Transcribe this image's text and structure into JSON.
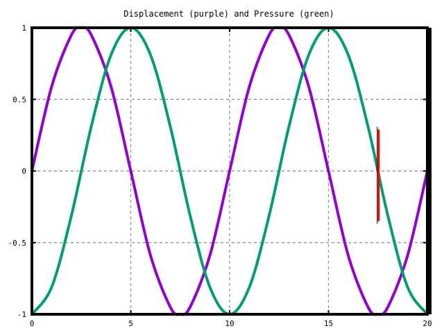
{
  "chart_data": {
    "type": "line",
    "title": "Displacement (purple) and Pressure (green)",
    "xlabel": "",
    "ylabel": "",
    "xlim": [
      0,
      20
    ],
    "ylim": [
      -1,
      1
    ],
    "x_ticks": [
      "0",
      "5",
      "10",
      "15",
      "20"
    ],
    "y_ticks": [
      "1",
      "0.5",
      "0",
      "-0.5",
      "-1"
    ],
    "grid": true,
    "series": [
      {
        "color": "#9400d3",
        "x": [
          0,
          1,
          2,
          2.5,
          3,
          4,
          5,
          6,
          7,
          7.5,
          8,
          9,
          10,
          11,
          12,
          12.5,
          13,
          14,
          15,
          16,
          17,
          17.5,
          18,
          19,
          20
        ],
        "y": [
          0,
          0.59,
          0.95,
          1,
          0.95,
          0.59,
          0,
          -0.59,
          -0.95,
          -1,
          -0.95,
          -0.59,
          0,
          0.59,
          0.95,
          1,
          0.95,
          0.59,
          0,
          -0.59,
          -0.95,
          -1,
          -0.95,
          -0.59,
          0
        ]
      },
      {
        "color": "#009e73",
        "x": [
          0,
          1,
          2,
          3,
          4,
          5,
          6,
          7,
          8,
          9,
          10,
          11,
          12,
          13,
          14,
          15,
          16,
          17,
          18,
          19,
          20
        ],
        "y": [
          -1,
          -0.81,
          -0.31,
          0.31,
          0.81,
          1,
          0.81,
          0.31,
          -0.31,
          -0.81,
          -1,
          -0.81,
          -0.31,
          0.31,
          0.81,
          1,
          0.81,
          0.31,
          -0.31,
          -0.81,
          -1
        ]
      }
    ],
    "marker": {
      "color": "#ff0000",
      "x": 17.5,
      "y_range": [
        -0.35,
        0.29
      ]
    }
  }
}
